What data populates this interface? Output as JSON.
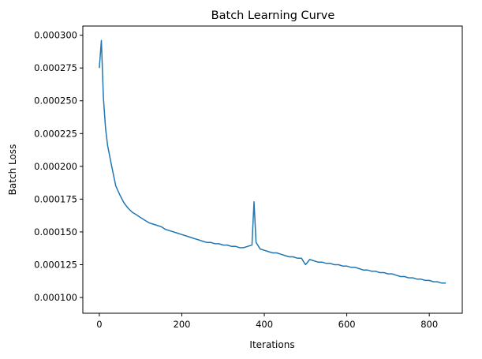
{
  "chart_data": {
    "type": "line",
    "title": "Batch Learning Curve",
    "xlabel": "Iterations",
    "ylabel": "Batch Loss",
    "xlim": [
      -40,
      880
    ],
    "ylim": [
      8.8e-05,
      0.000307
    ],
    "x_ticks": [
      0,
      200,
      400,
      600,
      800
    ],
    "y_ticks": [
      0.0001,
      0.000125,
      0.00015,
      0.000175,
      0.0002,
      0.000225,
      0.00025,
      0.000275,
      0.0003
    ],
    "x_tick_labels": [
      "0",
      "200",
      "400",
      "600",
      "800"
    ],
    "y_tick_labels": [
      "0.000100",
      "0.000125",
      "0.000150",
      "0.000175",
      "0.000200",
      "0.000225",
      "0.000250",
      "0.000275",
      "0.000300"
    ],
    "grid": false,
    "series_color": "#1f77b4",
    "x": [
      0,
      5,
      10,
      15,
      20,
      30,
      40,
      50,
      60,
      70,
      80,
      90,
      100,
      110,
      120,
      130,
      140,
      150,
      160,
      170,
      180,
      190,
      200,
      210,
      220,
      230,
      240,
      250,
      260,
      270,
      280,
      290,
      300,
      310,
      320,
      330,
      340,
      350,
      360,
      370,
      375,
      380,
      390,
      400,
      410,
      420,
      430,
      440,
      450,
      460,
      470,
      480,
      490,
      500,
      510,
      520,
      530,
      540,
      550,
      560,
      570,
      580,
      590,
      600,
      610,
      620,
      630,
      640,
      650,
      660,
      670,
      680,
      690,
      700,
      710,
      720,
      730,
      740,
      750,
      760,
      770,
      780,
      790,
      800,
      810,
      820,
      830,
      840
    ],
    "values": [
      0.000275,
      0.000296,
      0.000252,
      0.000229,
      0.000216,
      0.0002,
      0.000185,
      0.000178,
      0.000172,
      0.000168,
      0.000165,
      0.000163,
      0.000161,
      0.000159,
      0.000157,
      0.000156,
      0.000155,
      0.000154,
      0.000152,
      0.000151,
      0.00015,
      0.000149,
      0.000148,
      0.000147,
      0.000146,
      0.000145,
      0.000144,
      0.000143,
      0.000142,
      0.000142,
      0.000141,
      0.000141,
      0.00014,
      0.00014,
      0.000139,
      0.000139,
      0.000138,
      0.000138,
      0.000139,
      0.00014,
      0.000173,
      0.000142,
      0.000137,
      0.000136,
      0.000135,
      0.000134,
      0.000134,
      0.000133,
      0.000132,
      0.000131,
      0.000131,
      0.00013,
      0.00013,
      0.000125,
      0.000129,
      0.000128,
      0.000127,
      0.000127,
      0.000126,
      0.000126,
      0.000125,
      0.000125,
      0.000124,
      0.000124,
      0.000123,
      0.000123,
      0.000122,
      0.000121,
      0.000121,
      0.00012,
      0.00012,
      0.000119,
      0.000119,
      0.000118,
      0.000118,
      0.000117,
      0.000116,
      0.000116,
      0.000115,
      0.000115,
      0.000114,
      0.000114,
      0.000113,
      0.000113,
      0.000112,
      0.000112,
      0.000111,
      0.000111
    ]
  }
}
